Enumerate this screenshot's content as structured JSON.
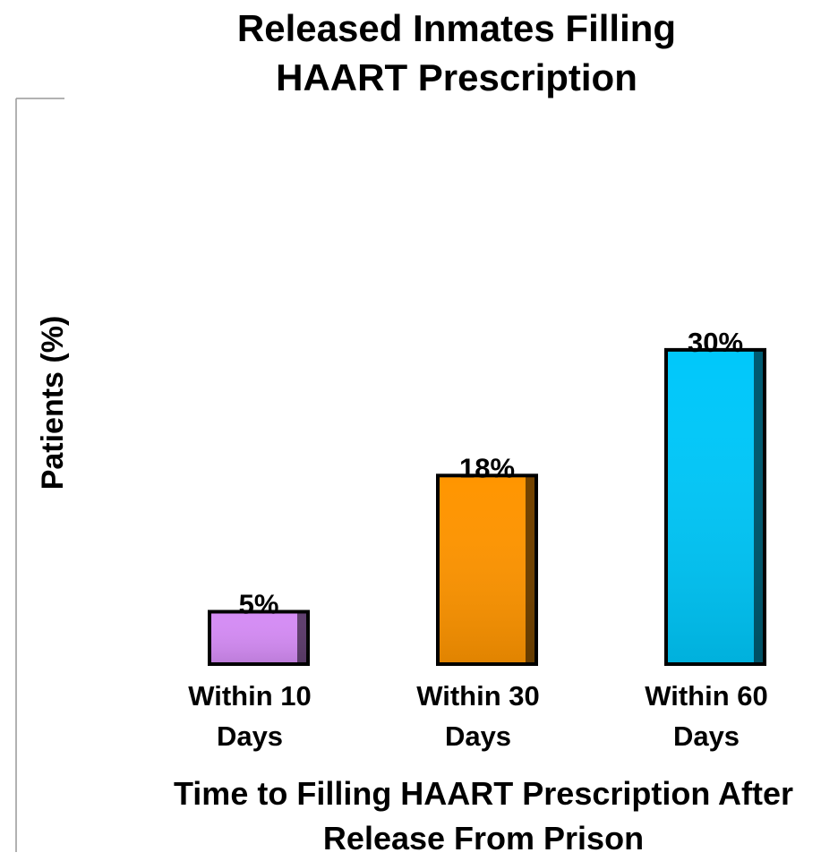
{
  "chart_data": {
    "type": "bar",
    "title": "Released Inmates Filling HAART Prescription",
    "y_label": "Patients (%)",
    "x_label": "Time to Filling HAART Prescription After Release From Prison",
    "categories": [
      "Within 10 Days",
      "Within 30 Days",
      "Within 60 Days"
    ],
    "values": [
      5,
      18,
      30
    ],
    "value_labels": [
      "5%",
      "18%",
      "30%"
    ],
    "colors": [
      "#d58cf5",
      "#ff9500",
      "#00c8fa"
    ],
    "ylim": [
      0,
      54
    ]
  }
}
